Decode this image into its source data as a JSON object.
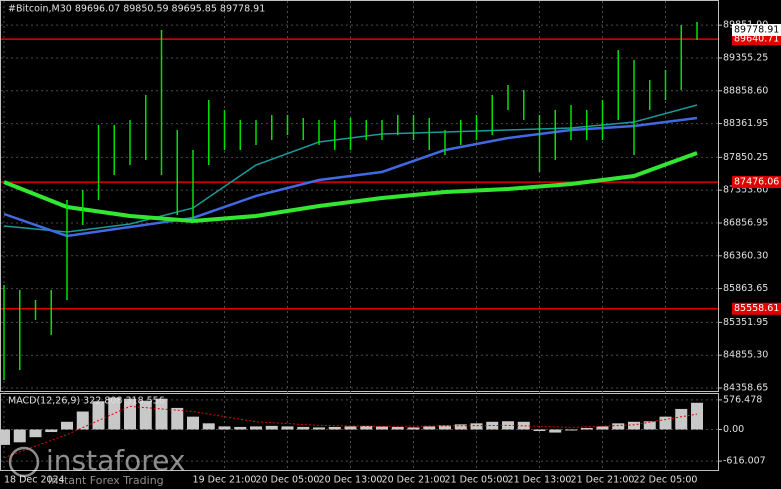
{
  "chart_data": [
    {
      "type": "hilo",
      "title": "#Bitcoin,M30  89696.07 89850.59 89695.85 89778.91",
      "categories": [
        "18 Dec 2024",
        null,
        null,
        null,
        null,
        null,
        null,
        null,
        null,
        null,
        null,
        null,
        null,
        null,
        "19 Dec 21:00",
        null,
        null,
        null,
        "20 Dec 05:00",
        null,
        null,
        null,
        "20 Dec 13:00",
        null,
        null,
        null,
        "20 Dec 21:00",
        null,
        null,
        null,
        "21 Dec 05:00",
        null,
        null,
        null,
        "21 Dec 13:00",
        null,
        null,
        null,
        "21 Dec 21:00",
        null,
        null,
        null,
        "22 Dec 05:00",
        null,
        null
      ],
      "high": [
        85918,
        85842,
        85691,
        85842,
        87205,
        87356,
        88341,
        88341,
        88416,
        88795,
        89779,
        88265,
        87962,
        88719,
        88568,
        88416,
        88416,
        88492,
        88492,
        88446,
        88416,
        88416,
        88446,
        88416,
        88416,
        88492,
        88492,
        88446,
        88265,
        88416,
        88492,
        88795,
        88946,
        88870,
        88492,
        88568,
        88643,
        88568,
        88719,
        89476,
        89325,
        89022,
        89173,
        89855,
        89900
      ],
      "low": [
        84480,
        84631,
        85388,
        85161,
        85691,
        86826,
        87205,
        87584,
        87735,
        87811,
        87584,
        86978,
        86902,
        87735,
        87962,
        87962,
        88038,
        88113,
        88189,
        88113,
        88038,
        87962,
        87962,
        88113,
        88113,
        88189,
        88113,
        87962,
        87886,
        88038,
        88113,
        88189,
        88568,
        88416,
        87629,
        87811,
        88113,
        88113,
        88113,
        88416,
        87886,
        88568,
        88719,
        88870,
        89627
      ],
      "color": "#00e000",
      "lines": [
        {
          "color": "#1a9a9a",
          "x": [
            0,
            4,
            8,
            12,
            16,
            20,
            24,
            28,
            32,
            36,
            40,
            44
          ],
          "values": [
            86811,
            86720,
            86842,
            87084,
            87735,
            88083,
            88204,
            88234,
            88265,
            88295,
            88386,
            88643
          ]
        },
        {
          "color": "#4169e1",
          "x": [
            0,
            4,
            8,
            12,
            16,
            20,
            24,
            28,
            32,
            36,
            40,
            44
          ],
          "values": [
            86993,
            86660,
            86796,
            86933,
            87266,
            87508,
            87629,
            87962,
            88144,
            88265,
            88325,
            88446
          ]
        },
        {
          "color": "#32e632",
          "x": [
            0,
            4,
            8,
            12,
            16,
            20,
            24,
            28,
            32,
            36,
            40,
            44
          ],
          "values": [
            87477,
            87099,
            86963,
            86887,
            86963,
            87114,
            87235,
            87326,
            87372,
            87447,
            87568,
            87917
          ]
        }
      ],
      "levels": [
        {
          "value": 89640.71,
          "color": "#e00000"
        },
        {
          "value": 87476.06,
          "color": "#e00000"
        },
        {
          "value": 85558.61,
          "color": "#e00000"
        }
      ],
      "last_price": 89778.91,
      "ylim": [
        84298,
        90233
      ],
      "yticks": [
        {
          "value": 89851.9,
          "label": "89851.90"
        },
        89355.25,
        {
          "value": 88858.6,
          "label": "88858.60"
        },
        88361.95,
        87850.25,
        {
          "value": 87353.6,
          "label": "87353.60"
        },
        86856.95,
        {
          "value": 86360.3,
          "label": "86360.30"
        },
        85863.65,
        85351.95,
        {
          "value": 84855.3,
          "label": "84855.30"
        },
        84358.65
      ],
      "grid": true
    },
    {
      "type": "macd",
      "title": "MACD(12,26,9) 322.808 318.556",
      "values": [
        -300,
        -250,
        -150,
        -50,
        150,
        350,
        550,
        620,
        600,
        560,
        600,
        420,
        250,
        120,
        60,
        50,
        60,
        70,
        60,
        50,
        40,
        50,
        60,
        70,
        60,
        50,
        40,
        60,
        80,
        100,
        120,
        150,
        160,
        150,
        -30,
        -60,
        -20,
        30,
        60,
        120,
        150,
        160,
        250,
        400,
        520
      ],
      "color": "#c8c8c8",
      "signal": {
        "color": "#e00000",
        "x": [
          0,
          4,
          8,
          12,
          16,
          20,
          24,
          28,
          32,
          36,
          40,
          44
        ],
        "values": [
          -550,
          -100,
          450,
          350,
          150,
          80,
          60,
          70,
          80,
          40,
          90,
          300
        ]
      },
      "ylim": [
        -789,
        691
      ],
      "yticks": [
        576.478,
        {
          "value": 0,
          "label": "0.00"
        },
        -616.007
      ]
    }
  ],
  "watermark": {
    "text": "instaforex",
    "subtext": "Instant Forex Trading"
  }
}
